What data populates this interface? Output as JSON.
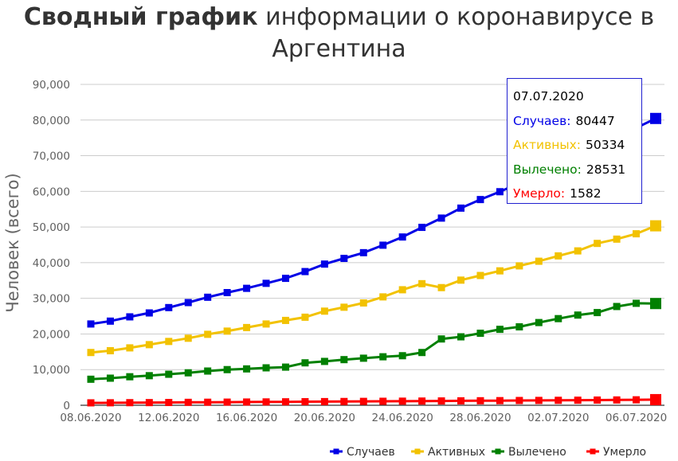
{
  "title": {
    "bold": "Сводный график",
    "rest": " информации о коронавирусе в Аргентина"
  },
  "tooltip": {
    "date": "07.07.2020",
    "rows": [
      {
        "label": "Случаев:",
        "value": "80447",
        "color": "#0000e6"
      },
      {
        "label": "Активных:",
        "value": "50334",
        "color": "#f2c200"
      },
      {
        "label": "Вылечено:",
        "value": "28531",
        "color": "#008000"
      },
      {
        "label": "Умерло:",
        "value": "1582",
        "color": "#ff0000"
      }
    ]
  },
  "chart_data": {
    "type": "line",
    "ylabel": "Человек (всего)",
    "xlabel": "",
    "ylim": [
      0,
      90000
    ],
    "yticks": [
      "0",
      "10,000",
      "20,000",
      "30,000",
      "40,000",
      "50,000",
      "60,000",
      "70,000",
      "80,000",
      "90,000"
    ],
    "x": [
      "08.06.2020",
      "09.06.2020",
      "10.06.2020",
      "11.06.2020",
      "12.06.2020",
      "13.06.2020",
      "14.06.2020",
      "15.06.2020",
      "16.06.2020",
      "17.06.2020",
      "18.06.2020",
      "19.06.2020",
      "20.06.2020",
      "21.06.2020",
      "22.06.2020",
      "23.06.2020",
      "24.06.2020",
      "25.06.2020",
      "26.06.2020",
      "27.06.2020",
      "28.06.2020",
      "29.06.2020",
      "30.06.2020",
      "01.07.2020",
      "02.07.2020",
      "03.07.2020",
      "04.07.2020",
      "05.07.2020",
      "06.07.2020",
      "07.07.2020"
    ],
    "xtick_labels": [
      "08.06.2020",
      "12.06.2020",
      "16.06.2020",
      "20.06.2020",
      "24.06.2020",
      "28.06.2020",
      "02.07.2020",
      "06.07.2020"
    ],
    "grid": true,
    "legend_position": "bottom-right",
    "series": [
      {
        "name": "Случаев",
        "color": "#0000e6",
        "values": [
          22800,
          23600,
          24800,
          25900,
          27400,
          28800,
          30300,
          31600,
          32800,
          34200,
          35600,
          37500,
          39600,
          41200,
          42800,
          44900,
          47200,
          49900,
          52500,
          55300,
          57700,
          59900,
          62300,
          64500,
          67100,
          69900,
          72800,
          75400,
          77800,
          80447
        ]
      },
      {
        "name": "Активных",
        "color": "#f2c200",
        "values": [
          14800,
          15300,
          16100,
          17000,
          17900,
          18800,
          19900,
          20800,
          21800,
          22800,
          23800,
          24700,
          26400,
          27500,
          28700,
          30400,
          32400,
          34100,
          33000,
          35100,
          36400,
          37700,
          39100,
          40400,
          41900,
          43300,
          45400,
          46600,
          48100,
          50334
        ]
      },
      {
        "name": "Вылечено",
        "color": "#008000",
        "values": [
          7300,
          7600,
          8000,
          8300,
          8700,
          9100,
          9600,
          10000,
          10200,
          10500,
          10700,
          11900,
          12300,
          12800,
          13200,
          13600,
          13900,
          14800,
          18600,
          19200,
          20200,
          21300,
          22000,
          23200,
          24300,
          25300,
          26000,
          27700,
          28600,
          28531
        ]
      },
      {
        "name": "Умерло",
        "color": "#ff0000",
        "values": [
          680,
          700,
          730,
          750,
          780,
          820,
          850,
          880,
          910,
          940,
          970,
          1000,
          1030,
          1060,
          1090,
          1120,
          1150,
          1180,
          1210,
          1240,
          1270,
          1300,
          1340,
          1360,
          1390,
          1420,
          1460,
          1490,
          1530,
          1582
        ]
      }
    ]
  }
}
